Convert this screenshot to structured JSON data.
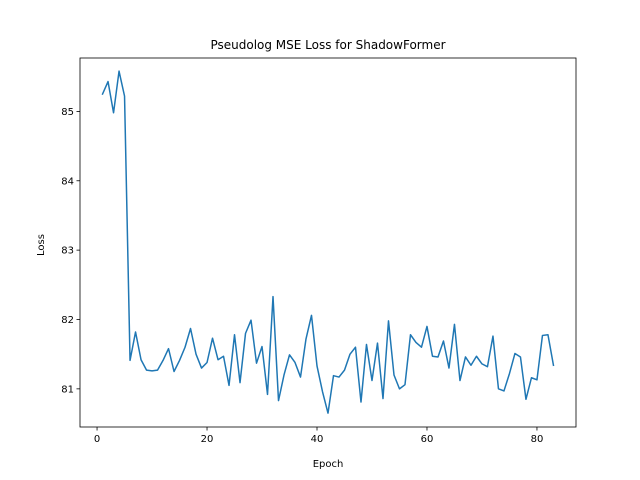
{
  "chart_data": {
    "type": "line",
    "title": "Pseudolog MSE Loss for ShadowFormer",
    "xlabel": "Epoch",
    "ylabel": "Loss",
    "xlim": [
      -3.1,
      87.1
    ],
    "ylim": [
      80.45,
      85.77
    ],
    "xticks": [
      0,
      20,
      40,
      60,
      80
    ],
    "yticks": [
      81,
      82,
      83,
      84,
      85
    ],
    "grid": false,
    "series": [
      {
        "name": "",
        "color": "#1f77b4",
        "x": [
          1,
          2,
          3,
          4,
          5,
          6,
          7,
          8,
          9,
          10,
          11,
          12,
          13,
          14,
          15,
          16,
          17,
          18,
          19,
          20,
          21,
          22,
          23,
          24,
          25,
          26,
          27,
          28,
          29,
          30,
          31,
          32,
          33,
          34,
          35,
          36,
          37,
          38,
          39,
          40,
          41,
          42,
          43,
          44,
          45,
          46,
          47,
          48,
          49,
          50,
          51,
          52,
          53,
          54,
          55,
          56,
          57,
          58,
          59,
          60,
          61,
          62,
          63,
          64,
          65,
          66,
          67,
          68,
          69,
          70,
          71,
          72,
          73,
          74,
          75,
          76,
          77,
          78,
          79,
          80,
          81,
          82,
          83
        ],
        "y": [
          85.25,
          85.43,
          84.98,
          85.58,
          85.22,
          81.41,
          81.82,
          81.42,
          81.27,
          81.26,
          81.27,
          81.41,
          81.58,
          81.25,
          81.41,
          81.6,
          81.87,
          81.5,
          81.3,
          81.38,
          81.73,
          81.42,
          81.47,
          81.05,
          81.78,
          81.09,
          81.8,
          81.99,
          81.37,
          81.61,
          80.92,
          82.33,
          80.83,
          81.2,
          81.49,
          81.38,
          81.17,
          81.72,
          82.06,
          81.33,
          80.96,
          80.65,
          81.19,
          81.17,
          81.27,
          81.5,
          81.6,
          80.81,
          81.64,
          81.12,
          81.66,
          80.86,
          81.98,
          81.2,
          81.0,
          81.06,
          81.78,
          81.67,
          81.6,
          81.9,
          81.47,
          81.46,
          81.69,
          81.3,
          81.93,
          81.12,
          81.46,
          81.34,
          81.47,
          81.36,
          81.32,
          81.76,
          81.0,
          80.97,
          81.22,
          81.51,
          81.46,
          80.85,
          81.16,
          81.13,
          81.77,
          81.78,
          81.34
        ]
      }
    ]
  }
}
